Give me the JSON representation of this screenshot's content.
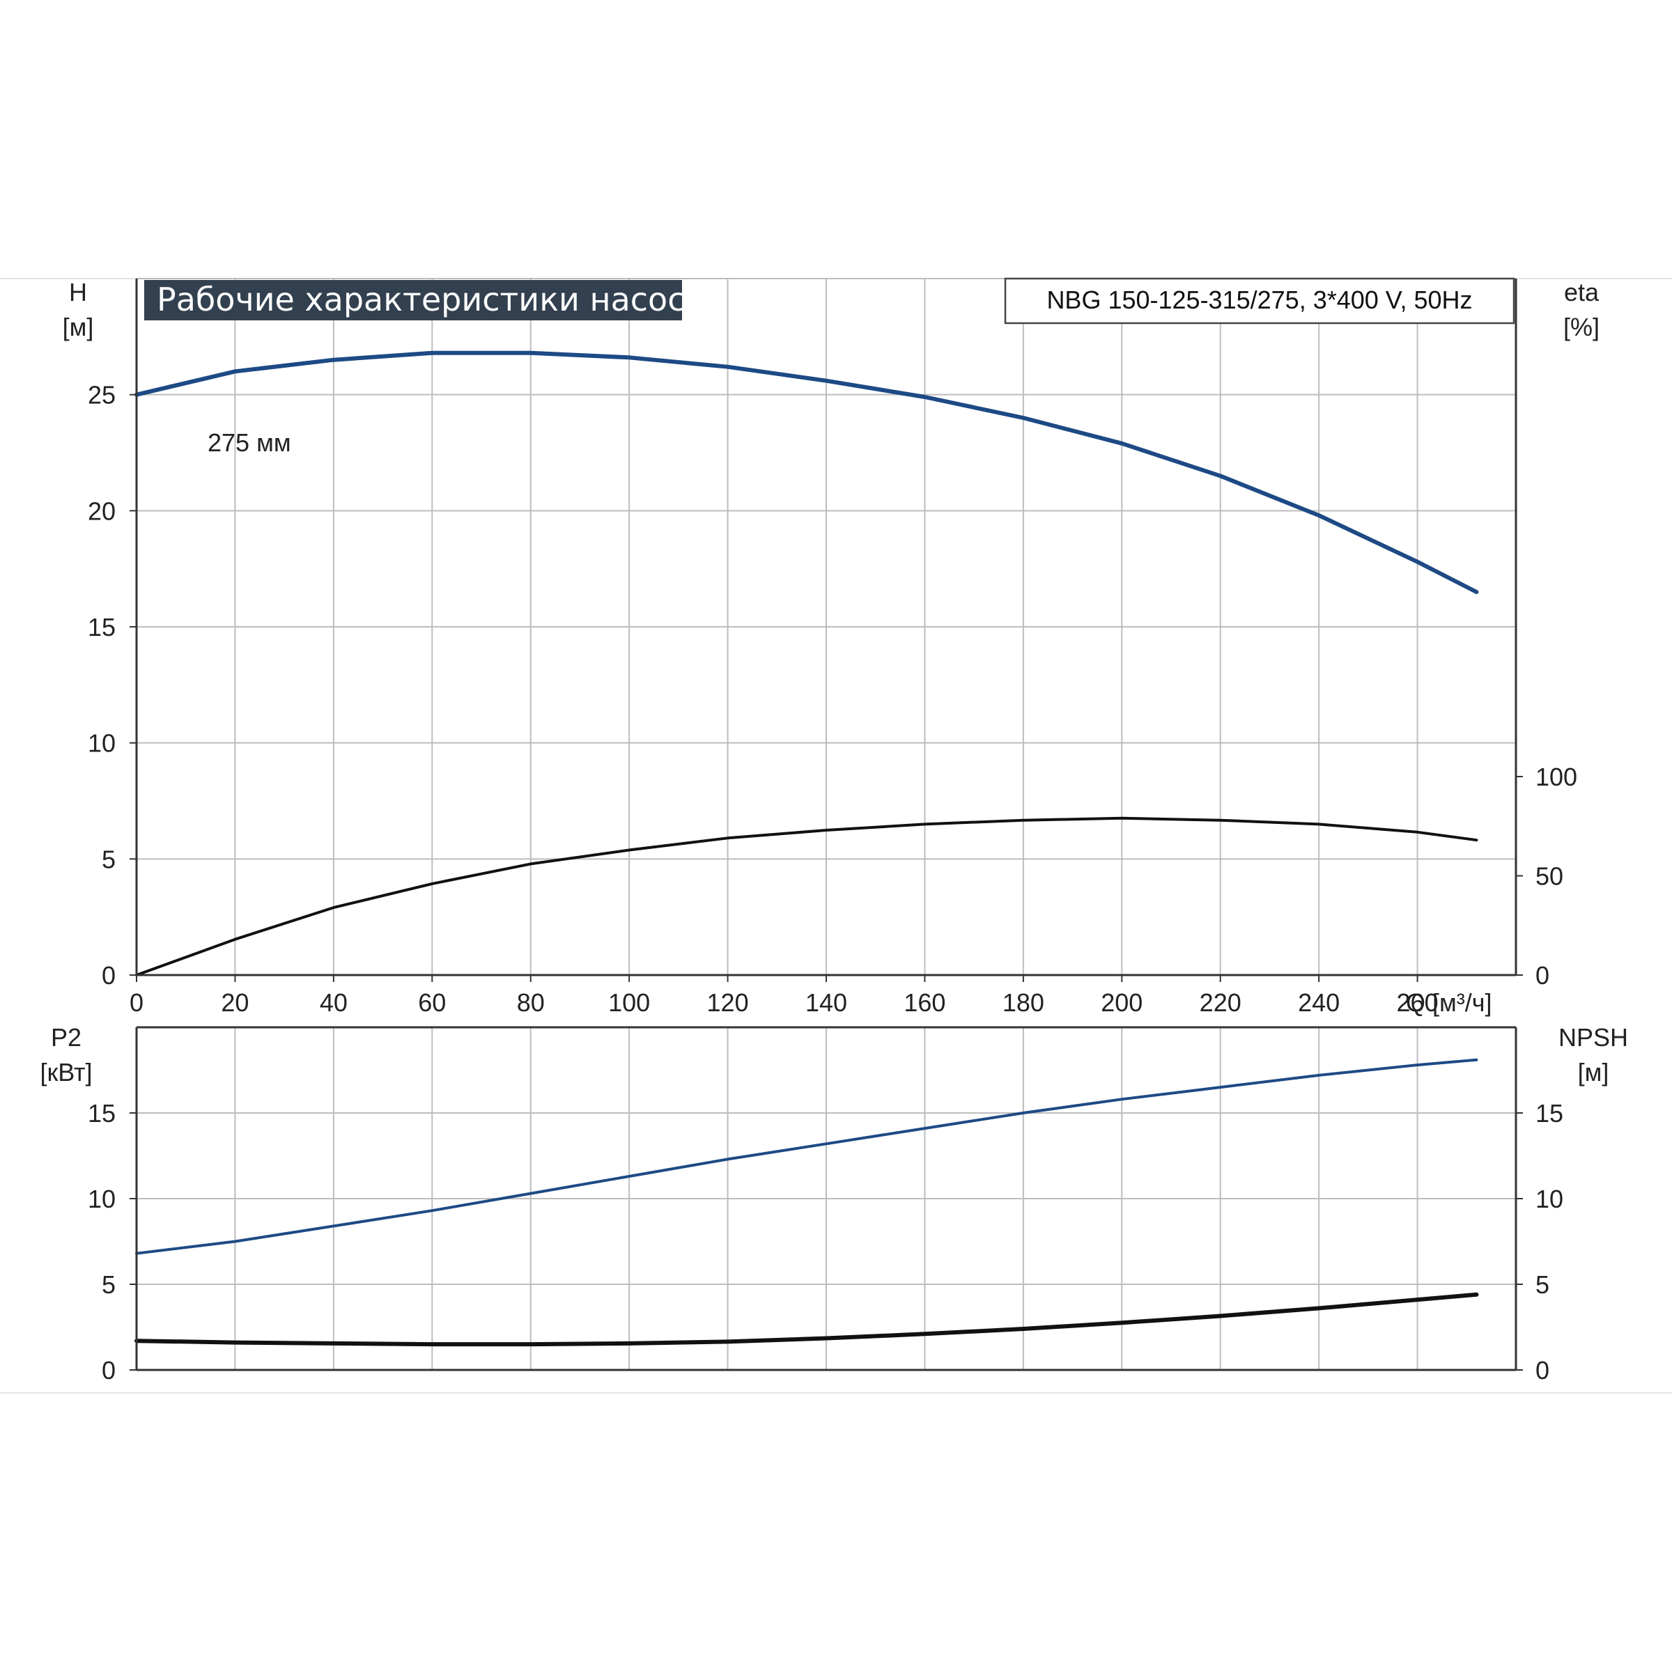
{
  "title": "Рабочие характеристики насоса",
  "model": "NBG 150-125-315/275, 3*400 V, 50Hz",
  "colors": {
    "title_bg": "#33404f",
    "grid": "#bdbdbd",
    "head_curve": "#1d4a85",
    "power_curve": "#1d4a85",
    "eta_curve": "#111111",
    "npsh_curve": "#111111"
  },
  "chart_data": [
    {
      "type": "line",
      "name": "upper",
      "x_axis": {
        "label": "Q [м³/ч]",
        "range": [
          0,
          280
        ],
        "ticks": [
          0,
          20,
          40,
          60,
          80,
          100,
          120,
          140,
          160,
          180,
          200,
          220,
          240,
          260
        ]
      },
      "y_axis_left": {
        "label_line1": "H",
        "label_line2": "[м]",
        "range": [
          0,
          30
        ],
        "ticks": [
          0,
          5,
          10,
          15,
          20,
          25
        ]
      },
      "y_axis_right": {
        "label_line1": "eta",
        "label_line2": "[%]",
        "range": [
          0,
          100
        ],
        "ticks": [
          0,
          50,
          100
        ]
      },
      "grid": true,
      "series": [
        {
          "name": "275 мм",
          "axis": "left",
          "x": [
            0,
            20,
            40,
            60,
            80,
            100,
            120,
            140,
            160,
            180,
            200,
            220,
            240,
            260,
            272
          ],
          "y": [
            25.0,
            26.0,
            26.5,
            26.8,
            26.8,
            26.6,
            26.2,
            25.6,
            24.9,
            24.0,
            22.9,
            21.5,
            19.8,
            17.8,
            16.5
          ]
        },
        {
          "axis": "right",
          "x": [
            0,
            20,
            40,
            60,
            80,
            100,
            120,
            140,
            160,
            180,
            200,
            220,
            240,
            260,
            272
          ],
          "y": [
            0,
            18,
            34,
            46,
            56,
            63,
            69,
            73,
            76,
            78,
            79,
            78,
            76,
            72,
            68
          ]
        }
      ]
    },
    {
      "type": "line",
      "name": "lower",
      "x_axis": {
        "range": [
          0,
          280
        ],
        "ticks": [
          0,
          20,
          40,
          60,
          80,
          100,
          120,
          140,
          160,
          180,
          200,
          220,
          240,
          260
        ]
      },
      "y_axis_left": {
        "label_line1": "P2",
        "label_line2": "[кВт]",
        "range": [
          0,
          20
        ],
        "ticks": [
          0,
          5,
          10,
          15
        ]
      },
      "y_axis_right": {
        "label_line1": "NPSH",
        "label_line2": "[м]",
        "range": [
          0,
          20
        ],
        "ticks": [
          0,
          5,
          10,
          15
        ]
      },
      "grid": true,
      "series": [
        {
          "axis": "left",
          "x": [
            0,
            20,
            40,
            60,
            80,
            100,
            120,
            140,
            160,
            180,
            200,
            220,
            240,
            260,
            272
          ],
          "y": [
            6.8,
            7.5,
            8.4,
            9.3,
            10.3,
            11.3,
            12.3,
            13.2,
            14.1,
            15.0,
            15.8,
            16.5,
            17.2,
            17.8,
            18.1
          ]
        },
        {
          "axis": "right",
          "x": [
            0,
            20,
            40,
            60,
            80,
            100,
            120,
            140,
            160,
            180,
            200,
            220,
            240,
            260,
            272
          ],
          "y": [
            1.7,
            1.6,
            1.55,
            1.5,
            1.5,
            1.55,
            1.65,
            1.85,
            2.1,
            2.4,
            2.75,
            3.15,
            3.6,
            4.1,
            4.4
          ]
        }
      ]
    }
  ]
}
